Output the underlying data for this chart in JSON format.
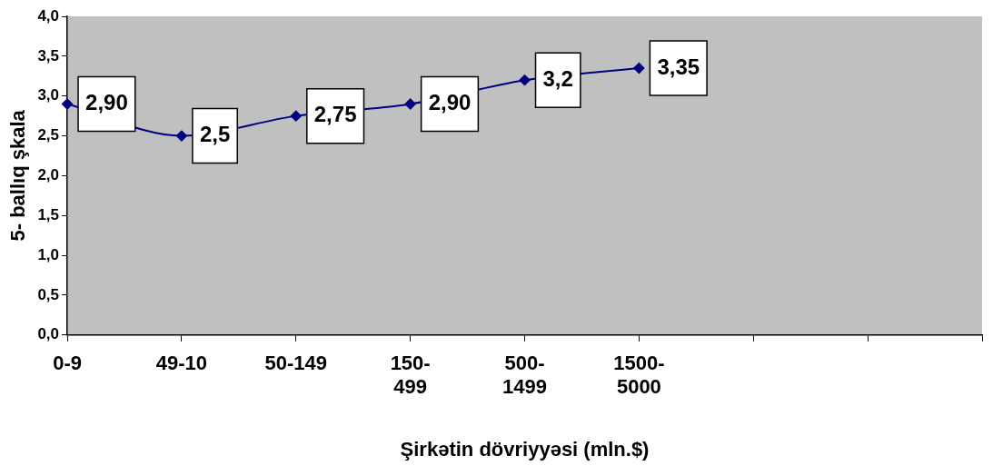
{
  "chart_data": {
    "type": "line",
    "xlabel": "Şirkətin dövriyyəsi (mln.$)",
    "ylabel": "5- ballıq şkala",
    "categories": [
      "0-9",
      "49-10",
      "50-149",
      "150-\n499",
      "500-\n1499",
      "1500-\n5000",
      null,
      null,
      null
    ],
    "series": [
      {
        "color": "#000080",
        "values": [
          2.9,
          2.5,
          2.75,
          2.9,
          3.2,
          3.35,
          null,
          null,
          null
        ],
        "value_labels": [
          "2,90",
          "2,5",
          "2,75",
          "2,90",
          "3,2",
          "3,35",
          null,
          null,
          null
        ]
      }
    ],
    "ylim": [
      0,
      4
    ],
    "yticks": [
      {
        "value": 0,
        "label": "0,0"
      },
      {
        "value": 0.5,
        "label": "0,5"
      },
      {
        "value": 1,
        "label": "1,0"
      },
      {
        "value": 1.5,
        "label": "1,5"
      },
      {
        "value": 2,
        "label": "2,0"
      },
      {
        "value": 2.5,
        "label": "2,5"
      },
      {
        "value": 3,
        "label": "3,0"
      },
      {
        "value": 3.5,
        "label": "3,5"
      },
      {
        "value": 4,
        "label": "4,0"
      }
    ],
    "marker": "diamond",
    "grid": false,
    "legend": false
  }
}
